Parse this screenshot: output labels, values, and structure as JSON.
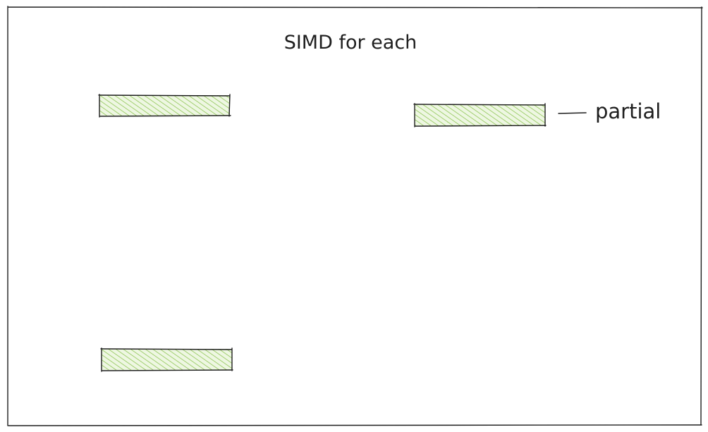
{
  "diagram": {
    "title": "SIMD for each",
    "blocks": [
      {
        "id": "block-top-left",
        "label": ""
      },
      {
        "id": "block-top-right",
        "label": "partial"
      },
      {
        "id": "block-bottom-left",
        "label": ""
      }
    ],
    "colors": {
      "stroke": "#1e1e1e",
      "hatch": "#8fc556",
      "hatch_bg": "#eef7e2"
    }
  }
}
